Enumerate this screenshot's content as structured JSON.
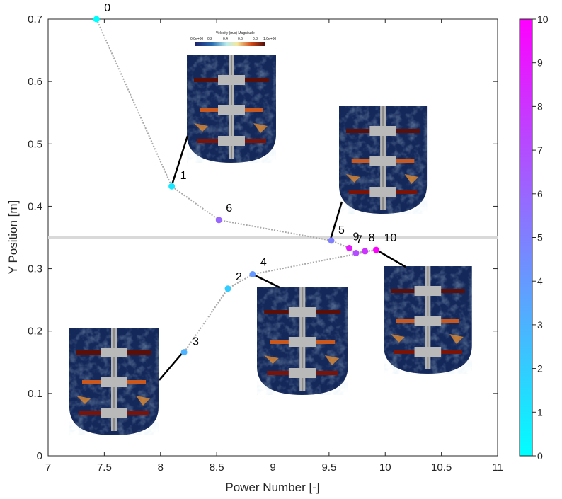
{
  "chart_data": {
    "type": "scatter",
    "xlabel": "Power Number [-]",
    "ylabel": "Y Position [m]",
    "xlim": [
      7,
      11
    ],
    "ylim": [
      0,
      0.7
    ],
    "xticks": [
      "7",
      "7.5",
      "8",
      "8.5",
      "9",
      "9.5",
      "10",
      "10.5",
      "11"
    ],
    "yticks": [
      "0",
      "0.1",
      "0.2",
      "0.3",
      "0.4",
      "0.5",
      "0.6",
      "0.7"
    ],
    "colorbar": {
      "min": 0,
      "max": 10,
      "ticks": [
        "0",
        "1",
        "2",
        "3",
        "4",
        "5",
        "6",
        "7",
        "8",
        "9",
        "10"
      ],
      "colormap": "cool"
    },
    "reference_line_y": 0.35,
    "points": [
      {
        "label": "0",
        "x": 7.43,
        "y": 0.7,
        "c": 0
      },
      {
        "label": "1",
        "x": 8.1,
        "y": 0.432,
        "c": 1
      },
      {
        "label": "2",
        "x": 8.6,
        "y": 0.268,
        "c": 2
      },
      {
        "label": "3",
        "x": 8.21,
        "y": 0.166,
        "c": 3
      },
      {
        "label": "4",
        "x": 8.82,
        "y": 0.291,
        "c": 4
      },
      {
        "label": "5",
        "x": 9.52,
        "y": 0.345,
        "c": 5
      },
      {
        "label": "6",
        "x": 8.52,
        "y": 0.378,
        "c": 6
      },
      {
        "label": "7",
        "x": 9.74,
        "y": 0.325,
        "c": 7
      },
      {
        "label": "8",
        "x": 9.82,
        "y": 0.328,
        "c": 8
      },
      {
        "label": "9",
        "x": 9.68,
        "y": 0.333,
        "c": 9
      },
      {
        "label": "10",
        "x": 9.92,
        "y": 0.33,
        "c": 10
      }
    ],
    "path_order": [
      "0",
      "1",
      "6",
      "5",
      "9",
      "7",
      "8",
      "10",
      "4",
      "2",
      "3"
    ]
  },
  "inset_legend": {
    "title": "Velocity (m/s) Magnitude",
    "ticks": [
      "0.0e+00",
      "0.2",
      "0.4",
      "0.6",
      "0.8",
      "1.0e+00"
    ]
  }
}
